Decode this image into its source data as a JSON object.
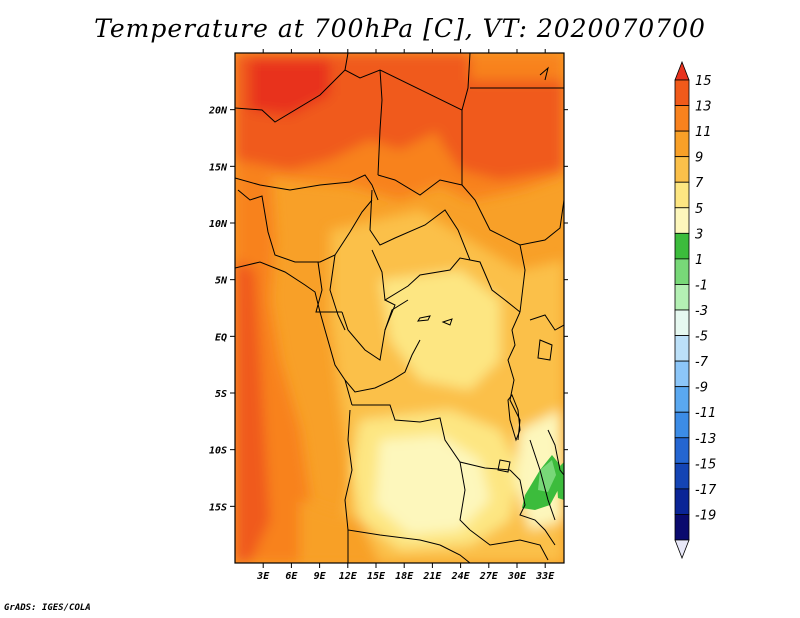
{
  "title": "Temperature at 700hPa [C], VT: 2020070700",
  "credit": "GrADS: IGES/COLA",
  "map": {
    "lon_labels": [
      "3E",
      "6E",
      "9E",
      "12E",
      "15E",
      "18E",
      "21E",
      "24E",
      "27E",
      "30E",
      "33E"
    ],
    "lat_labels": [
      "20N",
      "15N",
      "10N",
      "5N",
      "EQ",
      "5S",
      "10S",
      "15S"
    ],
    "lon_range": [
      0,
      35
    ],
    "lat_range": [
      -20,
      25
    ]
  },
  "colorbar": {
    "labels": [
      "15",
      "13",
      "11",
      "9",
      "7",
      "5",
      "3",
      "1",
      "-1",
      "-3",
      "-5",
      "-7",
      "-9",
      "-11",
      "-13",
      "-15",
      "-17",
      "-19"
    ],
    "colors": [
      "#e8321e",
      "#f05a1a",
      "#f8821e",
      "#f8a028",
      "#fbc04a",
      "#fde682",
      "#fdf7bc",
      "#3cbc3c",
      "#78d878",
      "#b4f0b4",
      "#e6f8f0",
      "#bce0f8",
      "#8cc6f8",
      "#5aa8f0",
      "#3c8ce6",
      "#2466d2",
      "#1444b4",
      "#0a2496",
      "#0a0a6e",
      "#e8e8f8"
    ]
  },
  "chart_data": {
    "type": "heatmap",
    "title": "Temperature at 700hPa [C], VT: 2020070700",
    "variable": "Temperature at 700hPa",
    "units": "C",
    "valid_time": "2020070700",
    "x_ticks": [
      "3E",
      "6E",
      "9E",
      "12E",
      "15E",
      "18E",
      "21E",
      "24E",
      "27E",
      "30E",
      "33E"
    ],
    "y_ticks": [
      "20N",
      "15N",
      "10N",
      "5N",
      "EQ",
      "5S",
      "10S",
      "15S"
    ],
    "colorbar_levels": [
      15,
      13,
      11,
      9,
      7,
      5,
      3,
      1,
      -1,
      -3,
      -5,
      -7,
      -9,
      -11,
      -13,
      -15,
      -17,
      -19
    ]
  }
}
